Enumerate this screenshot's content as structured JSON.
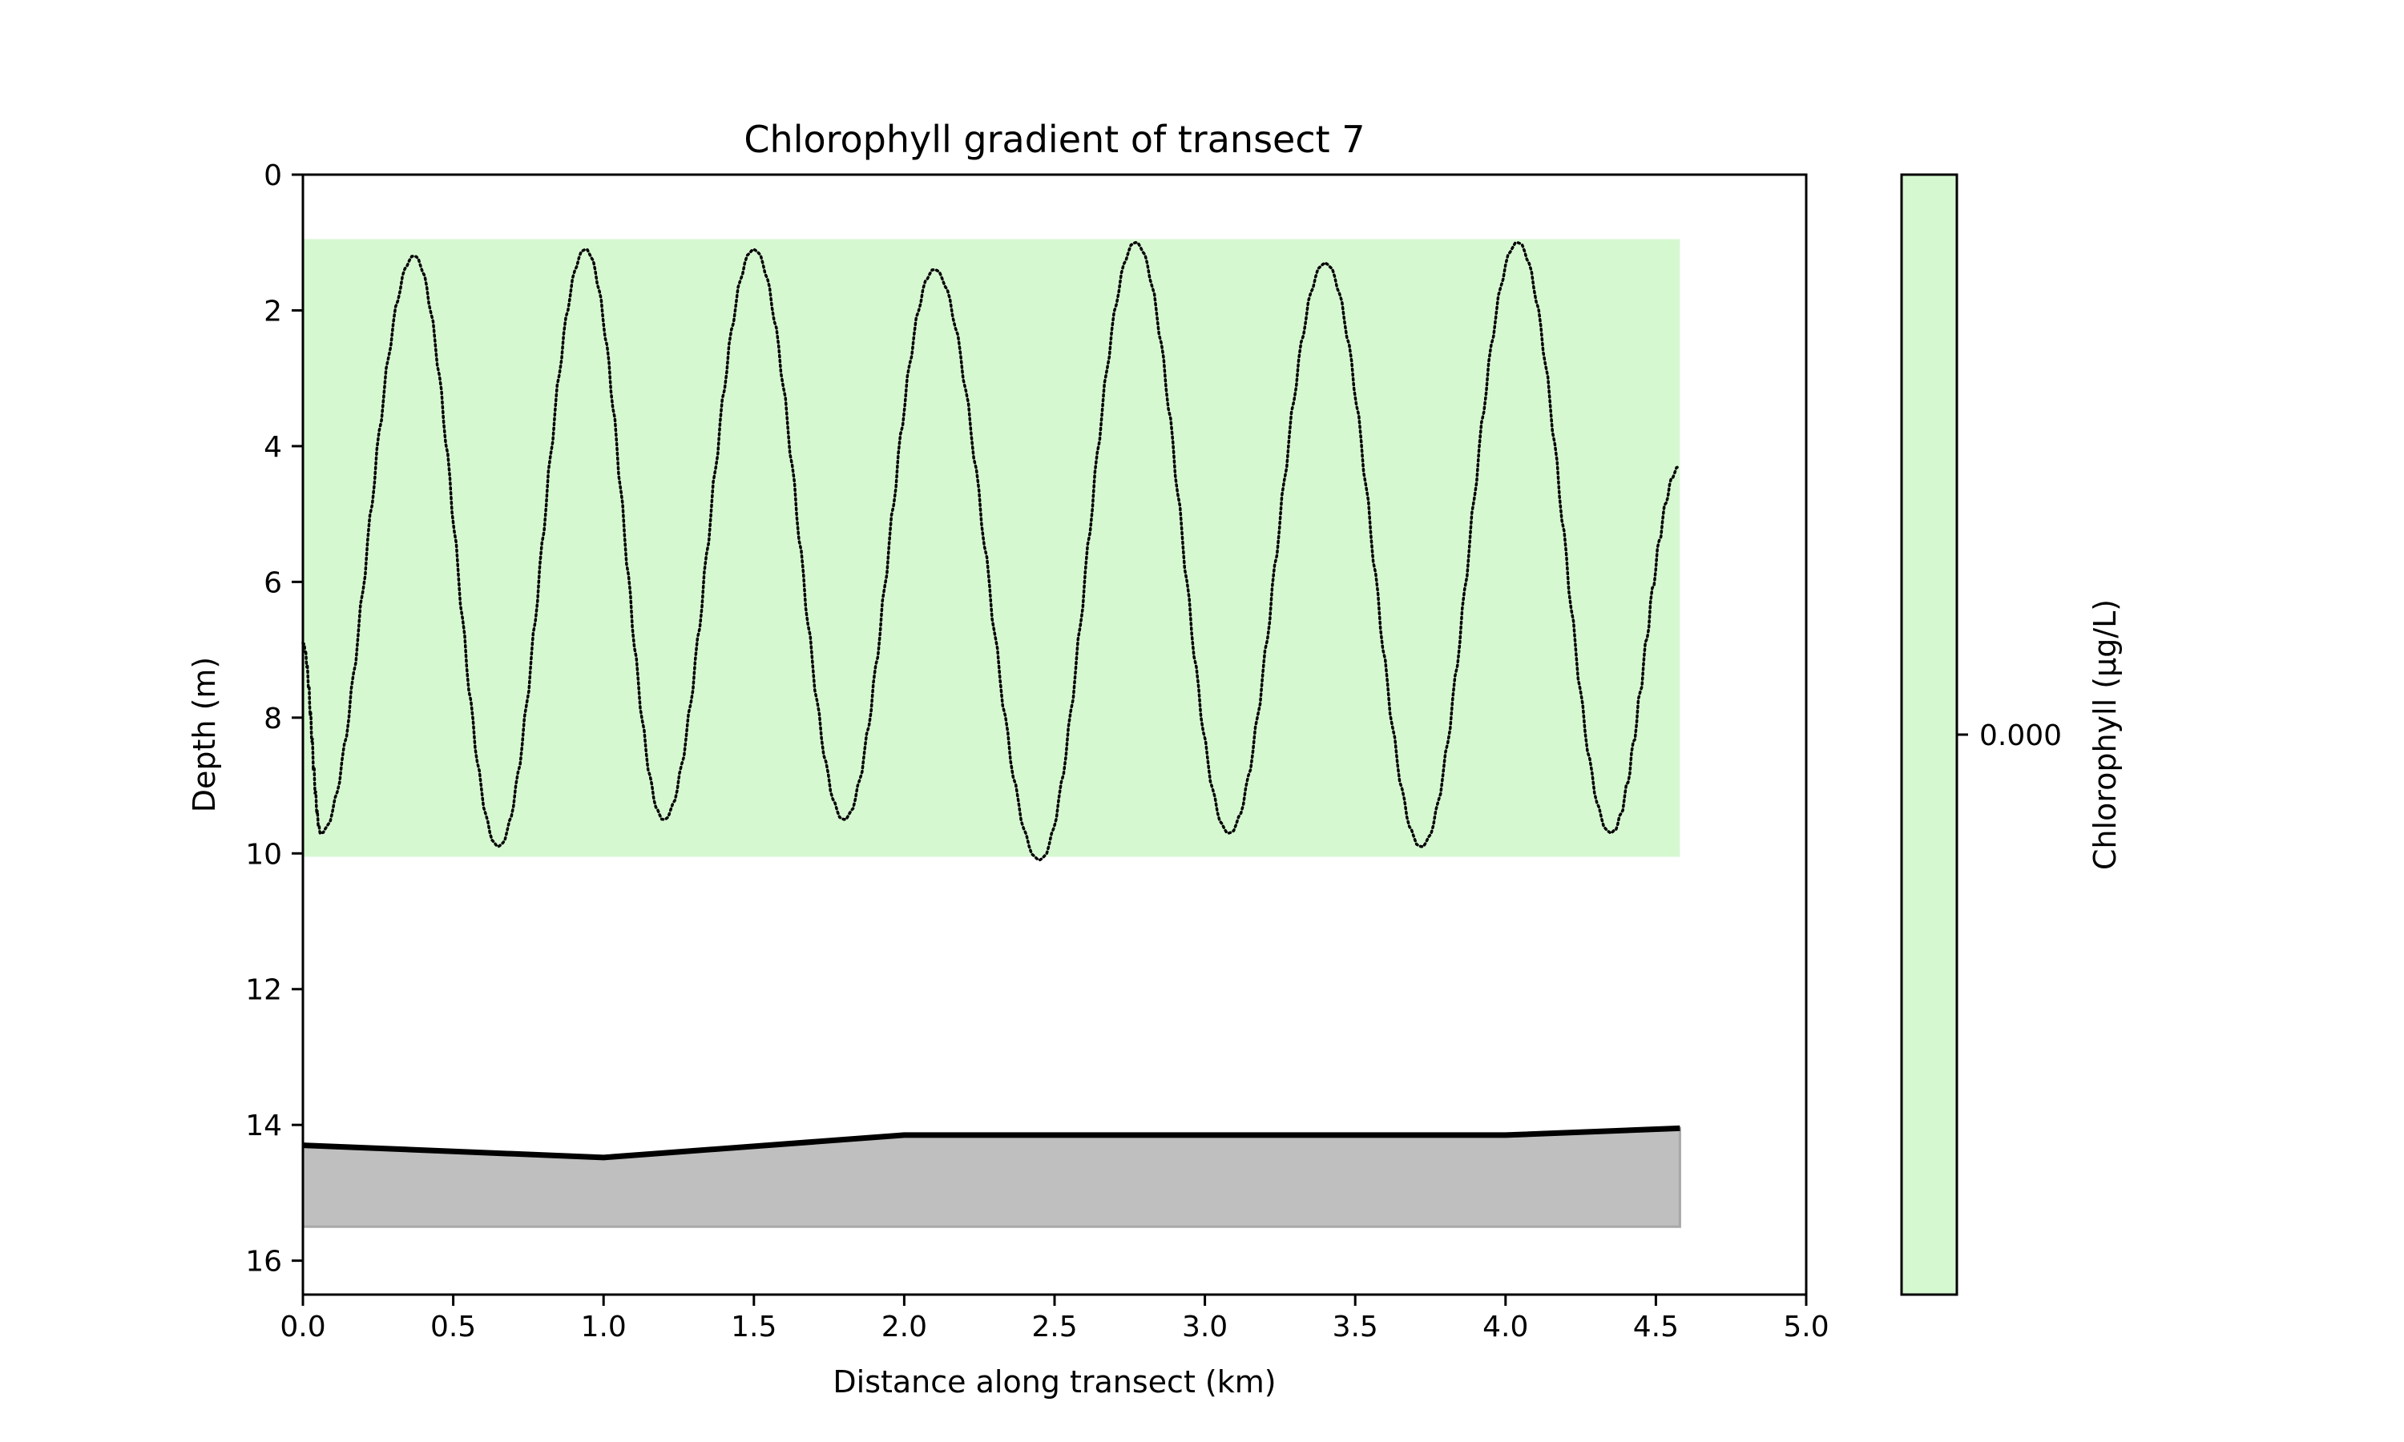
{
  "chart_data": {
    "type": "line",
    "title": "Chlorophyll gradient of transect 7",
    "xlabel": "Distance along transect (km)",
    "ylabel": "Depth (m)",
    "xlim": [
      0,
      5
    ],
    "ylim": [
      16.5,
      0
    ],
    "y_inverted": true,
    "grid": false,
    "xticks": [
      0,
      0.5,
      1,
      1.5,
      2,
      2.5,
      3,
      3.5,
      4,
      4.5,
      5
    ],
    "xtick_labels": [
      "0.0",
      "0.5",
      "1.0",
      "1.5",
      "2.0",
      "2.5",
      "3.0",
      "3.5",
      "4.0",
      "4.5",
      "5.0"
    ],
    "yticks": [
      0,
      2,
      4,
      6,
      8,
      10,
      12,
      14,
      16
    ],
    "ytick_labels": [
      "0",
      "2",
      "4",
      "6",
      "8",
      "10",
      "12",
      "14",
      "16"
    ],
    "chlorophyll_field": {
      "x_range": [
        0,
        4.58
      ],
      "depth_range": [
        0.95,
        10.05
      ],
      "value": 0.0,
      "color": "#d6f8d1"
    },
    "tow_path": {
      "style": "dotted",
      "color": "#000000",
      "x": [
        0,
        0.06,
        0.37,
        0.65,
        0.94,
        1.2,
        1.5,
        1.8,
        2.1,
        2.45,
        2.77,
        3.08,
        3.4,
        3.72,
        4.04,
        4.35,
        4.58
      ],
      "depth": [
        6.9,
        9.7,
        1.2,
        9.9,
        1.1,
        9.5,
        1.1,
        9.5,
        1.4,
        10.1,
        1.0,
        9.7,
        1.3,
        9.9,
        1.0,
        9.7,
        4.3
      ]
    },
    "seabed": {
      "color": "#000000",
      "fill_color": "#bfbfbf",
      "fill_bottom": 15.5,
      "x": [
        0,
        1,
        2,
        4,
        4.58
      ],
      "depth": [
        14.3,
        14.48,
        14.15,
        14.15,
        14.05
      ]
    },
    "colorbar": {
      "label": "Chlorophyll (µg/L)",
      "color": "#d6f8d1",
      "tick_value": 0.0,
      "tick_label": "0.000"
    }
  }
}
